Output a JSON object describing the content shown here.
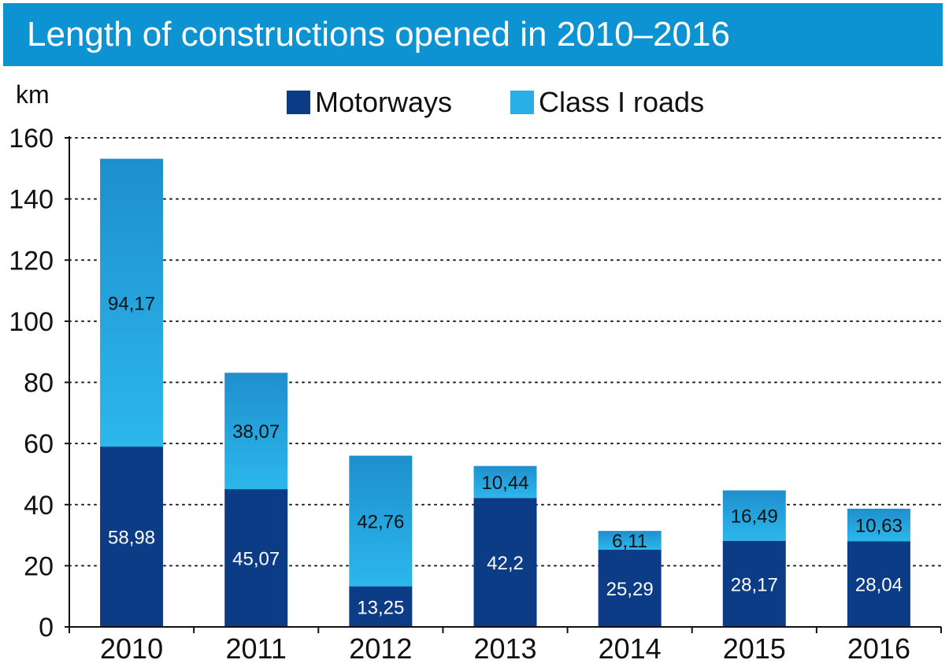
{
  "title": "Length of constructions opened in 2010–2016",
  "colors": {
    "title_bg": "#0d93d2",
    "motorways": "#0b3c85",
    "class1_top": "#1e8fcd",
    "class1_bottom": "#2cb7ec",
    "grid": "#222222"
  },
  "chart_data": {
    "type": "bar",
    "stacked": true,
    "ylabel": "km",
    "ylim": [
      0,
      160
    ],
    "yticks": [
      0,
      20,
      40,
      60,
      80,
      100,
      120,
      140,
      160
    ],
    "grid": "horizontal dotted",
    "legend_position": "top-center",
    "categories": [
      "2010",
      "2011",
      "2012",
      "2013",
      "2014",
      "2015",
      "2016"
    ],
    "series": [
      {
        "name": "Motorways",
        "color": "#0b3c85",
        "values": [
          58.98,
          45.07,
          13.25,
          42.2,
          25.29,
          28.17,
          28.04
        ],
        "labels": [
          "58,98",
          "45,07",
          "13,25",
          "42,2",
          "25,29",
          "28,17",
          "28,04"
        ]
      },
      {
        "name": "Class I roads",
        "color": "#29aee6",
        "values": [
          94.17,
          38.07,
          42.76,
          10.44,
          6.11,
          16.49,
          10.63
        ],
        "labels": [
          "94,17",
          "38,07",
          "42,76",
          "10,44",
          "6,11",
          "16,49",
          "10,63"
        ]
      }
    ]
  }
}
